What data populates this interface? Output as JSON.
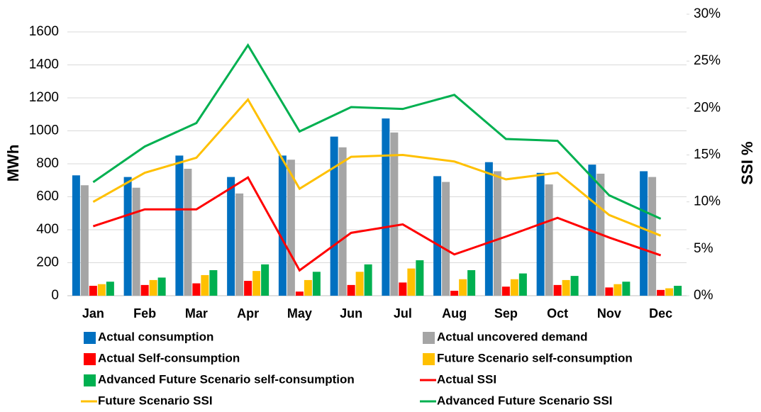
{
  "chart_data": {
    "type": "bar",
    "categories": [
      "Jan",
      "Feb",
      "Mar",
      "Apr",
      "May",
      "Jun",
      "Jul",
      "Aug",
      "Sep",
      "Oct",
      "Nov",
      "Dec"
    ],
    "y_label": "MWh",
    "y2_label": "SSI %",
    "ylim": [
      0,
      1600
    ],
    "yticks": [
      0,
      200,
      400,
      600,
      800,
      1000,
      1200,
      1400,
      1600
    ],
    "y2lim": [
      0,
      30
    ],
    "y2ticks": [
      {
        "value": 0,
        "label": "0%"
      },
      {
        "value": 5,
        "label": "5%"
      },
      {
        "value": 10,
        "label": "10%"
      },
      {
        "value": 15,
        "label": "15%"
      },
      {
        "value": 20,
        "label": "20%"
      },
      {
        "value": 25,
        "label": "25%"
      },
      {
        "value": 30,
        "label": "30%"
      }
    ],
    "grid": true,
    "series": [
      {
        "name": "Actual consumption",
        "type": "bar",
        "color": "#0070c0",
        "values": [
          730,
          720,
          850,
          720,
          850,
          965,
          1075,
          725,
          810,
          745,
          795,
          755
        ]
      },
      {
        "name": "Actual uncovered demand",
        "type": "bar",
        "color": "#a5a5a5",
        "values": [
          670,
          655,
          770,
          620,
          825,
          900,
          990,
          690,
          755,
          675,
          740,
          720
        ]
      },
      {
        "name": "Actual Self-consumption",
        "type": "bar",
        "color": "#ff0000",
        "values": [
          60,
          65,
          75,
          90,
          25,
          65,
          80,
          30,
          55,
          65,
          50,
          35
        ]
      },
      {
        "name": "Future Scenario self-consumption",
        "type": "bar",
        "color": "#ffc000",
        "values": [
          70,
          95,
          125,
          150,
          95,
          145,
          165,
          100,
          100,
          95,
          70,
          45
        ]
      },
      {
        "name": "Advanced Future Scenario self-consumption",
        "type": "bar",
        "color": "#00b050",
        "values": [
          85,
          110,
          155,
          190,
          145,
          190,
          215,
          155,
          135,
          120,
          85,
          60
        ]
      },
      {
        "name": "Actual SSI",
        "type": "line",
        "axis": "y2",
        "color": "#ff0000",
        "values": [
          7.4,
          9.2,
          9.2,
          12.6,
          2.7,
          6.7,
          7.6,
          4.4,
          6.3,
          8.3,
          6.2,
          4.3
        ]
      },
      {
        "name": "Future Scenario SSI",
        "type": "line",
        "axis": "y2",
        "color": "#ffc000",
        "values": [
          10,
          13.1,
          14.7,
          20.9,
          11.4,
          14.8,
          15,
          14.3,
          12.4,
          13.1,
          8.6,
          6.4
        ]
      },
      {
        "name": "Advanced Future Scenario SSI",
        "type": "line",
        "axis": "y2",
        "color": "#00b050",
        "values": [
          12.1,
          15.9,
          18.4,
          26.7,
          17.5,
          20.1,
          19.9,
          21.4,
          16.7,
          16.5,
          10.7,
          8.2
        ]
      }
    ]
  }
}
